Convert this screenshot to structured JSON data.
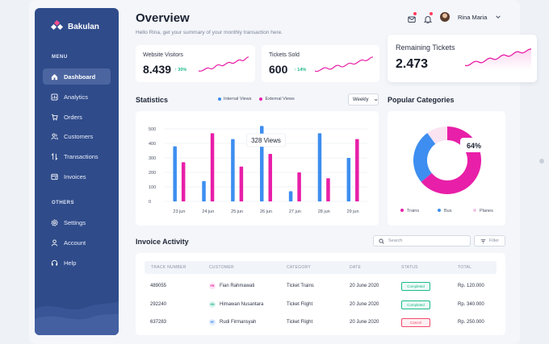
{
  "brand": {
    "name": "Bakulan"
  },
  "sidebar": {
    "menu_label": "MENU",
    "others_label": "OTHERS",
    "items": [
      {
        "label": "Dashboard",
        "icon": "home-icon",
        "active": true
      },
      {
        "label": "Analytics",
        "icon": "chart-icon"
      },
      {
        "label": "Orders",
        "icon": "cart-icon"
      },
      {
        "label": "Customers",
        "icon": "users-icon"
      },
      {
        "label": "Transactions",
        "icon": "swap-icon"
      },
      {
        "label": "Invoices",
        "icon": "invoice-icon"
      }
    ],
    "other_items": [
      {
        "label": "Settings",
        "icon": "gear-icon"
      },
      {
        "label": "Account",
        "icon": "user-icon"
      },
      {
        "label": "Help",
        "icon": "headset-icon"
      }
    ]
  },
  "header": {
    "title": "Overview",
    "subtitle": "Hello Rina, get your summary of your monthly transaction here.",
    "user_name": "Rina Maria"
  },
  "stats": [
    {
      "label": "Website Visitors",
      "value": "8.439",
      "change": "↑ 30%"
    },
    {
      "label": "Tickets Sold",
      "value": "600",
      "change": "↑ 14%"
    },
    {
      "label": "Remaining Tickets",
      "value": "2.473",
      "change": ""
    }
  ],
  "statistics": {
    "title": "Statistics",
    "period": "Weekly",
    "tooltip": "328 Views"
  },
  "chart_data": [
    {
      "type": "bar",
      "title": "Statistics",
      "categories": [
        "23 jun",
        "24 jun",
        "25 jun",
        "26 jun",
        "27 jun",
        "28 jun",
        "29 jun"
      ],
      "series": [
        {
          "name": "Internal Views",
          "values": [
            380,
            140,
            430,
            520,
            70,
            470,
            300
          ],
          "color": "#3d8ef0"
        },
        {
          "name": "External Views",
          "values": [
            270,
            470,
            240,
            328,
            200,
            160,
            430
          ],
          "color": "#e81fa8"
        }
      ],
      "yticks": [
        "0",
        "100",
        "200",
        "300",
        "400",
        "500"
      ],
      "ylim": [
        0,
        500
      ],
      "grid": true,
      "legend": "top"
    },
    {
      "type": "pie",
      "title": "Popular Categories",
      "labels": [
        "Trains",
        "Bus",
        "Planes"
      ],
      "values": [
        64,
        26,
        10
      ],
      "colors": [
        "#e81fa8",
        "#3d8ef0",
        "#fbe3f2"
      ],
      "center_label": "64%",
      "legend": "bottom"
    }
  ],
  "categories": {
    "title": "Popular Categories"
  },
  "invoice": {
    "title": "Invoice Activity",
    "search_placeholder": "Search",
    "filter_label": "Filter",
    "columns": [
      "TRACK NUMBER",
      "CUSTOMER",
      "CATEGORY",
      "DATE",
      "STATUS",
      "TOTAL"
    ],
    "rows": [
      {
        "track": "489055",
        "initials": "FR",
        "customer": "Fian Rahmawati",
        "category": "Ticket Trains",
        "date": "20 June 2020",
        "status": "Completed",
        "total": "Rp. 120.000"
      },
      {
        "track": "292240",
        "initials": "HN",
        "customer": "Himawan Nusantara",
        "category": "Ticket Flight",
        "date": "20 June 2020",
        "status": "Completed",
        "total": "Rp. 340.000"
      },
      {
        "track": "637283",
        "initials": "RF",
        "customer": "Rudi Firmansyah",
        "category": "Ticket Flight",
        "date": "20 June 2020",
        "status": "Cancel",
        "total": "Rp. 250.000"
      }
    ]
  },
  "colors": {
    "sidebar": "#2f4b8a",
    "accent_pink": "#e81fa8",
    "accent_blue": "#3d8ef0",
    "success": "#1bb98c",
    "danger": "#ef4b6a"
  }
}
